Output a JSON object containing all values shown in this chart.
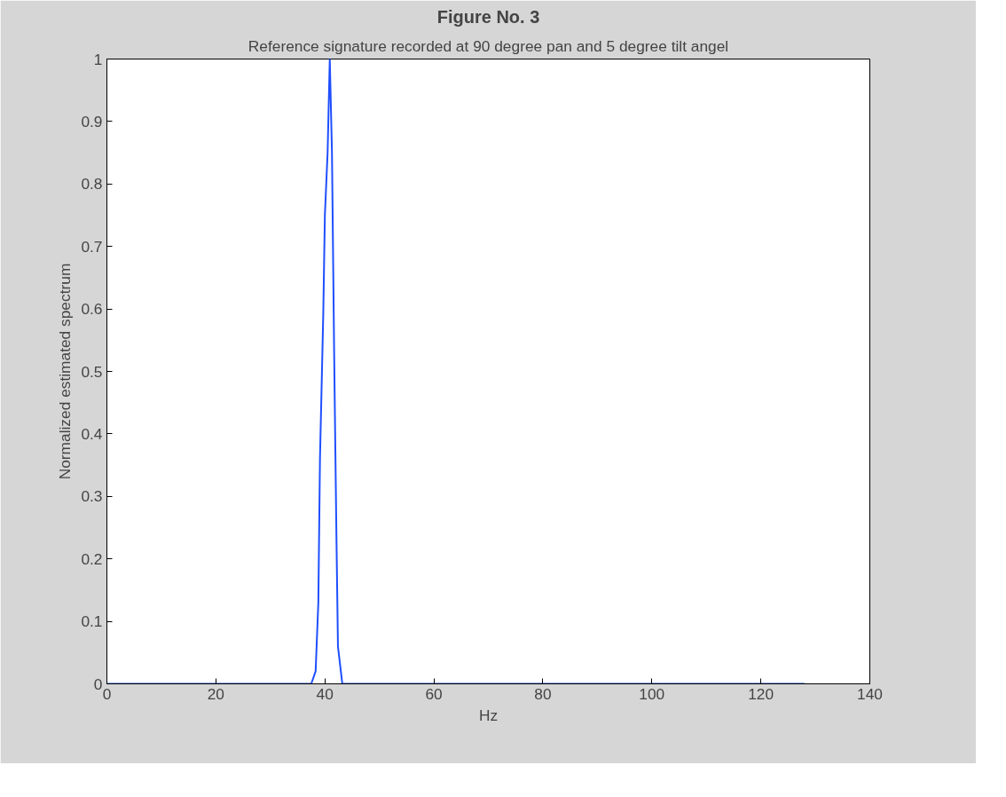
{
  "chart_data": {
    "type": "line",
    "title": "Reference signature recorded at 90 degree pan and 5 degree tilt angel",
    "xlabel": "Hz",
    "ylabel": "Normalized estimated spectrum",
    "annotations": [
      "Figure No. 3"
    ],
    "x": [
      0,
      37.5,
      38.3,
      38.8,
      39.1,
      39.7,
      40.0,
      40.5,
      40.9,
      41.3,
      41.7,
      42.1,
      42.4,
      43.2,
      128
    ],
    "series": [
      {
        "color": "#1f4fff",
        "values": [
          0,
          0,
          0.02,
          0.13,
          0.36,
          0.59,
          0.75,
          0.85,
          1.0,
          0.85,
          0.53,
          0.25,
          0.06,
          0,
          0
        ]
      }
    ],
    "xlim": [
      0,
      140
    ],
    "ylim": [
      0,
      1
    ],
    "xticks": [
      0,
      20,
      40,
      60,
      80,
      100,
      120,
      140
    ],
    "yticks": [
      0,
      0.1,
      0.2,
      0.3,
      0.4,
      0.5,
      0.6,
      0.7,
      0.8,
      0.9,
      1
    ],
    "grid": false
  }
}
